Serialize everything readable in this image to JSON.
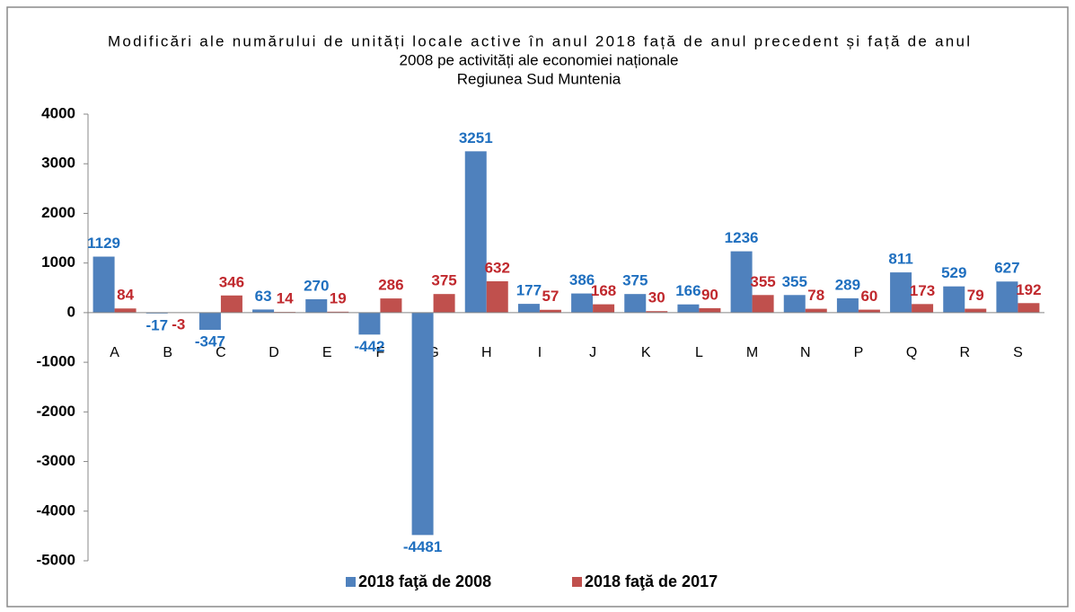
{
  "chart_data": {
    "type": "bar",
    "title": [
      "Modificări ale numărului de unități locale active în anul 2018 față de anul precedent și față de anul",
      "2008 pe activități ale economiei naționale",
      "Regiunea Sud Muntenia"
    ],
    "categories": [
      "A",
      "B",
      "C",
      "D",
      "E",
      "F",
      "G",
      "H",
      "I",
      "J",
      "K",
      "L",
      "M",
      "N",
      "P",
      "Q",
      "R",
      "S"
    ],
    "series": [
      {
        "name": "2018 faţă de 2008",
        "color": "#4f81bd",
        "label_color": "#1f6fbf",
        "values": [
          1129,
          -17,
          -347,
          63,
          270,
          -442,
          -4481,
          3251,
          177,
          386,
          375,
          166,
          1236,
          355,
          289,
          811,
          529,
          627
        ]
      },
      {
        "name": "2018 faţă de 2017",
        "color": "#c0504d",
        "label_color": "#c0282d",
        "values": [
          84,
          -3,
          346,
          14,
          19,
          286,
          375,
          632,
          57,
          168,
          30,
          90,
          355,
          78,
          60,
          173,
          79,
          192
        ]
      }
    ],
    "ylim": [
      -5000,
      4000
    ],
    "yticks": [
      -5000,
      -4000,
      -3000,
      -2000,
      -1000,
      0,
      1000,
      2000,
      3000,
      4000
    ],
    "grid": false,
    "legend": "bottom"
  }
}
